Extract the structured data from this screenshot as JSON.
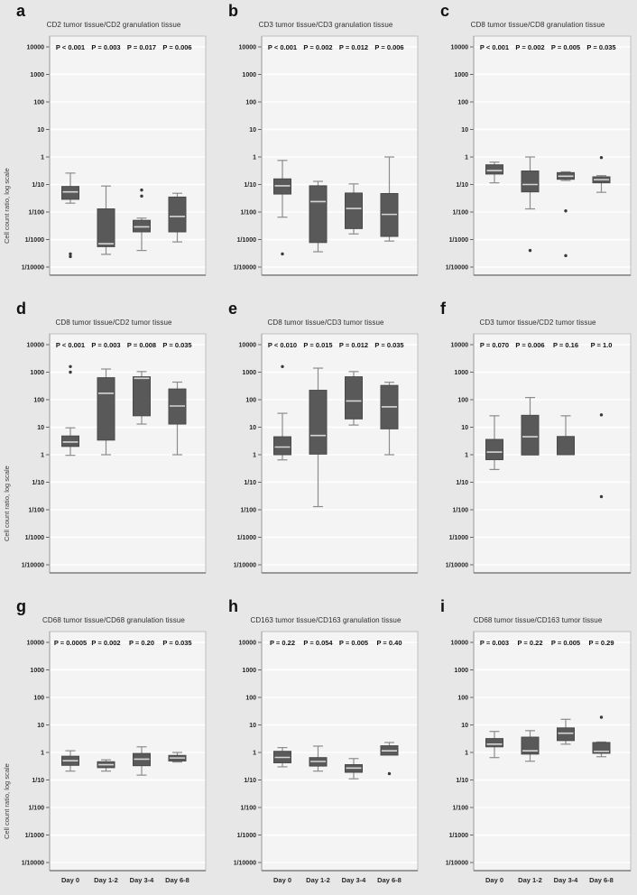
{
  "colors": {
    "page_bg": "#e7e7e7",
    "plot_bg": "#f4f4f4",
    "gridline": "#ffffff",
    "frame": "#b5b5b5",
    "axis_left": "#999999",
    "axis_bottom": "#8c8c8c",
    "tick": "#666666",
    "box_fill": "#595959",
    "box_stroke": "#4a4a4a",
    "median": "#d6d6d6",
    "whisker": "#8c8c8c",
    "outlier": "#3a3a3a"
  },
  "chart_data": {
    "type": "box",
    "scale": "log10",
    "ylim": [
      0.0001,
      10000
    ],
    "grid": true,
    "legend": "none",
    "ylabel": "Cell count ratio, log scale",
    "y_tick_labels": [
      "10000",
      "1000",
      "100",
      "10",
      "1",
      "1/10",
      "1/100",
      "1/1000",
      "1/10000"
    ],
    "categories": [
      "Day 0",
      "Day 1-2",
      "Day 3-4",
      "Day 6-8"
    ],
    "panels": [
      {
        "letter": "a",
        "title": "CD2 tumor tissue/CD2 granulation tissue",
        "p_values": [
          "P < 0.001",
          "P = 0.003",
          "P = 0.017",
          "P = 0.006"
        ],
        "boxes": [
          {
            "whisker_low": 0.021,
            "q1": 0.029,
            "median": 0.054,
            "q3": 0.085,
            "whisker_high": 0.26,
            "outliers": [
              0.0003,
              0.00024
            ]
          },
          {
            "whisker_low": 0.00029,
            "q1": 0.00055,
            "median": 0.0007,
            "q3": 0.013,
            "whisker_high": 0.088,
            "outliers": []
          },
          {
            "whisker_low": 0.0004,
            "q1": 0.0019,
            "median": 0.0029,
            "q3": 0.005,
            "whisker_high": 0.006,
            "outliers": [
              0.063,
              0.038
            ]
          },
          {
            "whisker_low": 0.00082,
            "q1": 0.0019,
            "median": 0.0069,
            "q3": 0.035,
            "whisker_high": 0.048,
            "outliers": []
          }
        ]
      },
      {
        "letter": "b",
        "title": "CD3 tumor tissue/CD3 granulation tissue",
        "p_values": [
          "P < 0.001",
          "P = 0.002",
          "P = 0.012",
          "P = 0.006"
        ],
        "boxes": [
          {
            "whisker_low": 0.0065,
            "q1": 0.045,
            "median": 0.09,
            "q3": 0.16,
            "whisker_high": 0.75,
            "outliers": [
              0.0003
            ]
          },
          {
            "whisker_low": 0.00036,
            "q1": 0.00078,
            "median": 0.024,
            "q3": 0.09,
            "whisker_high": 0.13,
            "outliers": []
          },
          {
            "whisker_low": 0.0016,
            "q1": 0.0025,
            "median": 0.0135,
            "q3": 0.049,
            "whisker_high": 0.105,
            "outliers": []
          },
          {
            "whisker_low": 0.00088,
            "q1": 0.0013,
            "median": 0.0082,
            "q3": 0.047,
            "whisker_high": 1.0,
            "outliers": []
          }
        ]
      },
      {
        "letter": "c",
        "title": "CD8 tumor tissue/CD8 granulation tissue",
        "p_values": [
          "P < 0.001",
          "P = 0.002",
          "P = 0.005",
          "P = 0.035"
        ],
        "boxes": [
          {
            "whisker_low": 0.115,
            "q1": 0.24,
            "median": 0.32,
            "q3": 0.52,
            "whisker_high": 0.65,
            "outliers": []
          },
          {
            "whisker_low": 0.013,
            "q1": 0.054,
            "median": 0.1,
            "q3": 0.31,
            "whisker_high": 1.0,
            "outliers": [
              0.0004
            ]
          },
          {
            "whisker_low": 0.14,
            "q1": 0.155,
            "median": 0.2,
            "q3": 0.27,
            "whisker_high": 0.29,
            "outliers": [
              0.011,
              0.00026
            ]
          },
          {
            "whisker_low": 0.052,
            "q1": 0.115,
            "median": 0.15,
            "q3": 0.19,
            "whisker_high": 0.21,
            "outliers": [
              0.95
            ]
          }
        ]
      },
      {
        "letter": "d",
        "title": "CD8 tumor tissue/CD2 tumor tissue",
        "p_values": [
          "P < 0.001",
          "P = 0.003",
          "P = 0.008",
          "P = 0.035"
        ],
        "boxes": [
          {
            "whisker_low": 0.95,
            "q1": 2.0,
            "median": 2.9,
            "q3": 4.8,
            "whisker_high": 9.5,
            "outliers": [
              1600,
              1000
            ]
          },
          {
            "whisker_low": 1.0,
            "q1": 3.4,
            "median": 170,
            "q3": 630,
            "whisker_high": 1300,
            "outliers": []
          },
          {
            "whisker_low": 13,
            "q1": 26,
            "median": 600,
            "q3": 680,
            "whisker_high": 1050,
            "outliers": []
          },
          {
            "whisker_low": 1.0,
            "q1": 13,
            "median": 59,
            "q3": 245,
            "whisker_high": 435,
            "outliers": []
          }
        ]
      },
      {
        "letter": "e",
        "title": "CD8 tumor tissue/CD3 tumor tissue",
        "p_values": [
          "P < 0.010",
          "P = 0.015",
          "P = 0.012",
          "P = 0.035"
        ],
        "boxes": [
          {
            "whisker_low": 0.65,
            "q1": 1.0,
            "median": 1.9,
            "q3": 4.5,
            "whisker_high": 32,
            "outliers": [
              1600
            ]
          },
          {
            "whisker_low": 0.013,
            "q1": 1.05,
            "median": 5,
            "q3": 220,
            "whisker_high": 1400,
            "outliers": []
          },
          {
            "whisker_low": 12,
            "q1": 20,
            "median": 90,
            "q3": 680,
            "whisker_high": 1050,
            "outliers": []
          },
          {
            "whisker_low": 1.0,
            "q1": 8.7,
            "median": 55,
            "q3": 330,
            "whisker_high": 430,
            "outliers": []
          }
        ]
      },
      {
        "letter": "f",
        "title": "CD3 tumor tissue/CD2 tumor tissue",
        "p_values": [
          "P = 0.070",
          "P = 0.006",
          "P = 0.16",
          "P = 1.0"
        ],
        "boxes": [
          {
            "whisker_low": 0.29,
            "q1": 0.66,
            "median": 1.25,
            "q3": 3.6,
            "whisker_high": 26,
            "outliers": []
          },
          {
            "whisker_low": 0.98,
            "q1": 0.98,
            "median": 4.5,
            "q3": 27,
            "whisker_high": 120,
            "outliers": []
          },
          {
            "whisker_low": 1.0,
            "q1": 1.0,
            "median": null,
            "q3": 4.6,
            "whisker_high": 26,
            "outliers": []
          },
          {
            "whisker_low": null,
            "q1": null,
            "median": null,
            "q3": null,
            "whisker_high": null,
            "outliers": [
              28,
              0.03
            ]
          }
        ]
      },
      {
        "letter": "g",
        "title": "CD68 tumor tissue/CD68 granulation tissue",
        "p_values": [
          "P = 0.0005",
          "P = 0.002",
          "P = 0.20",
          "P = 0.035"
        ],
        "boxes": [
          {
            "whisker_low": 0.21,
            "q1": 0.34,
            "median": 0.5,
            "q3": 0.73,
            "whisker_high": 1.15,
            "outliers": []
          },
          {
            "whisker_low": 0.21,
            "q1": 0.28,
            "median": 0.36,
            "q3": 0.46,
            "whisker_high": 0.54,
            "outliers": []
          },
          {
            "whisker_low": 0.15,
            "q1": 0.33,
            "median": 0.57,
            "q3": 0.92,
            "whisker_high": 1.6,
            "outliers": []
          },
          {
            "whisker_low": 0.45,
            "q1": 0.49,
            "median": 0.63,
            "q3": 0.78,
            "whisker_high": 1.0,
            "outliers": []
          }
        ]
      },
      {
        "letter": "h",
        "title": "CD163 tumor tissue/CD163 granulation tissue",
        "p_values": [
          "P = 0.22",
          "P = 0.054",
          "P = 0.005",
          "P = 0.40"
        ],
        "boxes": [
          {
            "whisker_low": 0.3,
            "q1": 0.42,
            "median": 0.66,
            "q3": 1.1,
            "whisker_high": 1.5,
            "outliers": []
          },
          {
            "whisker_low": 0.21,
            "q1": 0.32,
            "median": 0.47,
            "q3": 0.65,
            "whisker_high": 1.7,
            "outliers": []
          },
          {
            "whisker_low": 0.11,
            "q1": 0.19,
            "median": 0.27,
            "q3": 0.36,
            "whisker_high": 0.6,
            "outliers": []
          },
          {
            "whisker_low": 0.8,
            "q1": 0.8,
            "median": 1.15,
            "q3": 1.75,
            "whisker_high": 2.3,
            "outliers": [
              0.17
            ]
          }
        ]
      },
      {
        "letter": "i",
        "title": "CD68 tumor tissue/CD163 tumor tissue",
        "p_values": [
          "P = 0.003",
          "P = 0.22",
          "P = 0.005",
          "P = 0.29"
        ],
        "boxes": [
          {
            "whisker_low": 0.65,
            "q1": 1.6,
            "median": 2.0,
            "q3": 3.2,
            "whisker_high": 5.8,
            "outliers": []
          },
          {
            "whisker_low": 0.48,
            "q1": 0.87,
            "median": 1.15,
            "q3": 3.6,
            "whisker_high": 6.2,
            "outliers": []
          },
          {
            "whisker_low": 2.0,
            "q1": 2.7,
            "median": 5.0,
            "q3": 7.8,
            "whisker_high": 16,
            "outliers": []
          },
          {
            "whisker_low": 0.7,
            "q1": 0.93,
            "median": 1.1,
            "q3": 2.3,
            "whisker_high": 2.4,
            "outliers": [
              19
            ]
          }
        ]
      }
    ]
  }
}
